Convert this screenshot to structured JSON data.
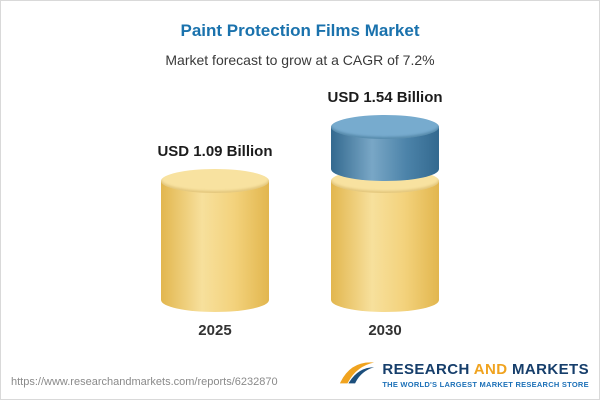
{
  "header": {
    "title": "Paint Protection Films Market",
    "subtitle": "Market forecast to grow at a CAGR of 7.2%"
  },
  "chart_data": {
    "type": "bar",
    "variant": "cylinder",
    "title": "Paint Protection Films Market",
    "subtitle": "Market forecast to grow at a CAGR of 7.2%",
    "categories": [
      "2025",
      "2030"
    ],
    "values": [
      1.09,
      1.54
    ],
    "value_labels": [
      "USD 1.09 Billion",
      "USD 1.54 Billion"
    ],
    "unit": "USD Billion",
    "cagr_percent": 7.2,
    "ylim": [
      0,
      1.7
    ],
    "colors": {
      "base_segment": "#F2CF76",
      "growth_segment": "#4A82A9",
      "title_text": "#1A72AD"
    },
    "legend": "none",
    "grid": false
  },
  "footer": {
    "url": "https://www.researchandmarkets.com/reports/6232870",
    "logo": {
      "word1": "RESEARCH",
      "word2": "AND",
      "word3": "MARKETS",
      "tagline": "THE WORLD'S LARGEST MARKET RESEARCH STORE",
      "navy": "#163E6B",
      "orange": "#F0A31F"
    }
  }
}
